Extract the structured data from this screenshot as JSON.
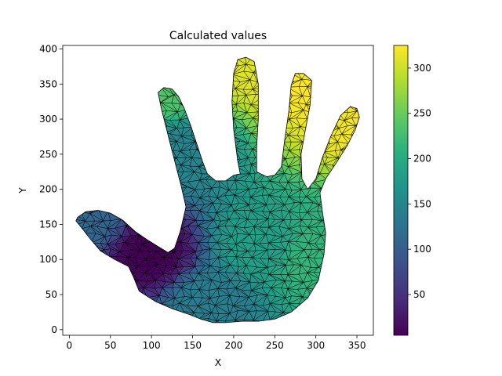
{
  "chart_data": {
    "type": "heatmap",
    "subtype": "triangulated-mesh (tripcolor with triplot)",
    "title": "Calculated values",
    "xlabel": "X",
    "ylabel": "Y",
    "xlim": [
      -8,
      370
    ],
    "ylim": [
      -8,
      405
    ],
    "x_ticks": [
      0,
      50,
      100,
      150,
      200,
      250,
      300,
      350
    ],
    "y_ticks": [
      0,
      50,
      100,
      150,
      200,
      250,
      300,
      350,
      400
    ],
    "colormap": "viridis",
    "colorbar": {
      "min": 5,
      "max": 325,
      "ticks": [
        50,
        100,
        150,
        200,
        250,
        300
      ]
    },
    "shape": "hand outline",
    "outline": [
      [
        10,
        160
      ],
      [
        20,
        168
      ],
      [
        35,
        170
      ],
      [
        50,
        166
      ],
      [
        65,
        156
      ],
      [
        80,
        140
      ],
      [
        95,
        128
      ],
      [
        110,
        117
      ],
      [
        120,
        110
      ],
      [
        128,
        116
      ],
      [
        135,
        140
      ],
      [
        142,
        175
      ],
      [
        136,
        205
      ],
      [
        125,
        255
      ],
      [
        112,
        315
      ],
      [
        108,
        338
      ],
      [
        115,
        345
      ],
      [
        125,
        343
      ],
      [
        133,
        332
      ],
      [
        140,
        315
      ],
      [
        148,
        290
      ],
      [
        155,
        265
      ],
      [
        162,
        240
      ],
      [
        168,
        222
      ],
      [
        178,
        212
      ],
      [
        190,
        212
      ],
      [
        200,
        220
      ],
      [
        208,
        222
      ],
      [
        205,
        240
      ],
      [
        200,
        285
      ],
      [
        198,
        325
      ],
      [
        200,
        365
      ],
      [
        205,
        385
      ],
      [
        215,
        388
      ],
      [
        225,
        382
      ],
      [
        230,
        350
      ],
      [
        230,
        300
      ],
      [
        228,
        260
      ],
      [
        228,
        225
      ],
      [
        240,
        218
      ],
      [
        250,
        220
      ],
      [
        258,
        232
      ],
      [
        262,
        270
      ],
      [
        267,
        310
      ],
      [
        270,
        348
      ],
      [
        275,
        365
      ],
      [
        285,
        365
      ],
      [
        295,
        355
      ],
      [
        293,
        320
      ],
      [
        287,
        283
      ],
      [
        282,
        250
      ],
      [
        283,
        215
      ],
      [
        290,
        200
      ],
      [
        300,
        215
      ],
      [
        308,
        245
      ],
      [
        318,
        275
      ],
      [
        330,
        305
      ],
      [
        342,
        318
      ],
      [
        350,
        315
      ],
      [
        353,
        303
      ],
      [
        348,
        285
      ],
      [
        338,
        262
      ],
      [
        325,
        238
      ],
      [
        312,
        215
      ],
      [
        305,
        195
      ],
      [
        308,
        168
      ],
      [
        312,
        138
      ],
      [
        310,
        108
      ],
      [
        303,
        70
      ],
      [
        290,
        45
      ],
      [
        270,
        25
      ],
      [
        250,
        15
      ],
      [
        230,
        12
      ],
      [
        210,
        12
      ],
      [
        190,
        10
      ],
      [
        175,
        10
      ],
      [
        160,
        15
      ],
      [
        145,
        22
      ],
      [
        125,
        30
      ],
      [
        105,
        40
      ],
      [
        85,
        55
      ],
      [
        78,
        75
      ],
      [
        72,
        90
      ],
      [
        55,
        100
      ],
      [
        38,
        112
      ],
      [
        25,
        130
      ],
      [
        15,
        145
      ],
      [
        8,
        155
      ]
    ],
    "value_samples": [
      {
        "x": 100,
        "y": 110,
        "value": 5
      },
      {
        "x": 20,
        "y": 160,
        "value": 110
      },
      {
        "x": 170,
        "y": 40,
        "value": 140
      },
      {
        "x": 230,
        "y": 120,
        "value": 185
      },
      {
        "x": 300,
        "y": 100,
        "value": 215
      },
      {
        "x": 140,
        "y": 260,
        "value": 150
      },
      {
        "x": 115,
        "y": 335,
        "value": 235
      },
      {
        "x": 215,
        "y": 380,
        "value": 310
      },
      {
        "x": 280,
        "y": 360,
        "value": 325
      },
      {
        "x": 340,
        "y": 310,
        "value": 320
      }
    ]
  }
}
